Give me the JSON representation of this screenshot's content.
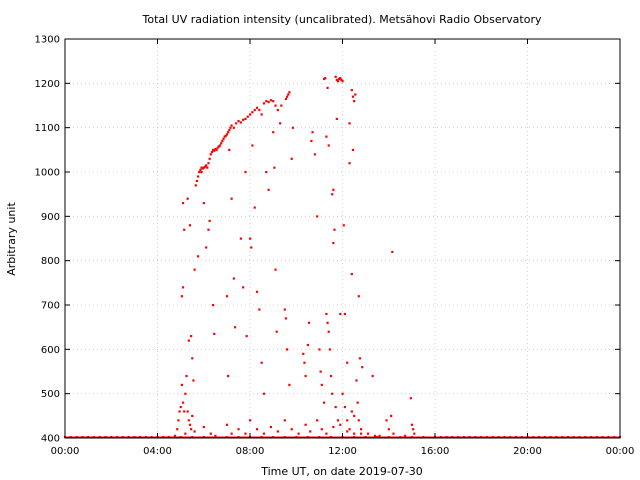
{
  "chart_data": {
    "type": "scatter",
    "title": "Total UV radiation intensity (uncalibrated). Metsähovi Radio Observatory",
    "xlabel": "Time UT, on date 2019-07-30",
    "ylabel": "Arbitrary unit",
    "xlim": [
      0,
      24
    ],
    "ylim": [
      400,
      1300
    ],
    "x_ticks": [
      0,
      4,
      8,
      12,
      16,
      20,
      24
    ],
    "x_tick_labels": [
      "00:00",
      "04:00",
      "08:00",
      "12:00",
      "16:00",
      "20:00",
      "00:00"
    ],
    "y_ticks": [
      400,
      500,
      600,
      700,
      800,
      900,
      1000,
      1100,
      1200,
      1300
    ],
    "grid": true,
    "color": "#ff0000",
    "baseline": {
      "x": [
        0,
        0.25,
        0.5,
        0.75,
        1,
        1.25,
        1.5,
        1.75,
        2,
        2.25,
        2.5,
        2.75,
        3,
        3.25,
        3.5,
        3.75,
        4,
        4.25,
        4.5,
        4.75,
        5,
        5.5,
        6,
        6.5,
        7,
        7.5,
        8,
        8.5,
        9,
        9.5,
        10,
        10.5,
        11,
        11.5,
        12,
        12.5,
        13,
        13.5,
        14,
        14.5,
        15,
        15.5,
        16,
        16.25,
        16.5,
        16.75,
        17,
        17.25,
        17.5,
        17.75,
        18,
        18.25,
        18.5,
        18.75,
        19,
        19.25,
        19.5,
        19.75,
        20,
        20.25,
        20.5,
        20.75,
        21,
        21.25,
        21.5,
        21.75,
        22,
        22.25,
        22.5,
        22.75,
        23,
        23.25,
        23.5,
        23.75,
        24
      ],
      "y": 400
    },
    "series": [
      {
        "points": [
          [
            4.75,
            405
          ],
          [
            4.85,
            420
          ],
          [
            4.9,
            440
          ],
          [
            4.95,
            460
          ],
          [
            5.0,
            470
          ],
          [
            5.05,
            520
          ],
          [
            5.1,
            480
          ],
          [
            5.15,
            460
          ],
          [
            5.2,
            500
          ],
          [
            5.25,
            540
          ],
          [
            5.3,
            460
          ],
          [
            5.35,
            440
          ],
          [
            5.4,
            430
          ],
          [
            5.45,
            420
          ],
          [
            5.5,
            450
          ],
          [
            5.05,
            720
          ],
          [
            5.1,
            740
          ],
          [
            5.15,
            870
          ],
          [
            5.1,
            930
          ],
          [
            5.3,
            940
          ],
          [
            5.4,
            880
          ],
          [
            5.35,
            620
          ],
          [
            5.45,
            630
          ],
          [
            5.5,
            580
          ],
          [
            5.55,
            530
          ],
          [
            5.6,
            780
          ],
          [
            5.65,
            970
          ],
          [
            5.7,
            980
          ],
          [
            5.75,
            990
          ],
          [
            5.8,
            1000
          ],
          [
            5.85,
            1005
          ],
          [
            5.9,
            1010
          ],
          [
            5.95,
            1008
          ],
          [
            6.0,
            1010
          ],
          [
            6.05,
            1012
          ],
          [
            6.1,
            1015
          ],
          [
            6.15,
            1010
          ],
          [
            6.2,
            1020
          ],
          [
            6.25,
            1030
          ],
          [
            6.3,
            1040
          ],
          [
            6.35,
            1045
          ],
          [
            6.4,
            1050
          ],
          [
            6.45,
            1048
          ],
          [
            6.5,
            1052
          ],
          [
            6.55,
            1050
          ],
          [
            6.6,
            1055
          ],
          [
            6.65,
            1058
          ],
          [
            6.7,
            1060
          ],
          [
            6.75,
            1065
          ],
          [
            6.8,
            1070
          ],
          [
            6.85,
            1075
          ],
          [
            6.9,
            1080
          ],
          [
            6.95,
            1082
          ],
          [
            7.0,
            1085
          ],
          [
            7.05,
            1090
          ],
          [
            7.1,
            1095
          ],
          [
            7.15,
            1100
          ],
          [
            7.2,
            1105
          ],
          [
            7.3,
            1100
          ],
          [
            7.4,
            1110
          ],
          [
            7.5,
            1115
          ],
          [
            7.6,
            1112
          ],
          [
            7.7,
            1118
          ],
          [
            7.8,
            1120
          ],
          [
            7.9,
            1125
          ],
          [
            8.0,
            1130
          ],
          [
            8.1,
            1135
          ],
          [
            8.2,
            1140
          ],
          [
            8.3,
            1145
          ],
          [
            8.4,
            1140
          ],
          [
            8.5,
            1130
          ],
          [
            8.6,
            1155
          ],
          [
            8.7,
            1160
          ],
          [
            8.8,
            1158
          ],
          [
            8.9,
            1162
          ],
          [
            9.0,
            1160
          ],
          [
            9.1,
            1150
          ],
          [
            9.2,
            1140
          ],
          [
            9.55,
            1165
          ],
          [
            9.6,
            1170
          ],
          [
            9.65,
            1175
          ],
          [
            9.7,
            1180
          ],
          [
            11.2,
            1210
          ],
          [
            11.25,
            1212
          ],
          [
            11.35,
            1190
          ],
          [
            11.7,
            1215
          ],
          [
            11.75,
            1208
          ],
          [
            11.8,
            1205
          ],
          [
            11.85,
            1210
          ],
          [
            11.9,
            1212
          ],
          [
            11.95,
            1208
          ],
          [
            12.0,
            1205
          ],
          [
            12.4,
            1185
          ],
          [
            12.45,
            1170
          ],
          [
            12.5,
            1160
          ],
          [
            12.55,
            1175
          ],
          [
            12.3,
            1110
          ],
          [
            12.45,
            1050
          ],
          [
            12.3,
            1020
          ],
          [
            11.4,
            1060
          ],
          [
            11.3,
            1080
          ],
          [
            11.6,
            960
          ],
          [
            11.55,
            950
          ],
          [
            11.75,
            1120
          ],
          [
            11.65,
            870
          ],
          [
            11.6,
            840
          ],
          [
            12.05,
            880
          ],
          [
            12.1,
            680
          ],
          [
            12.2,
            570
          ],
          [
            12.4,
            770
          ],
          [
            12.7,
            720
          ],
          [
            12.75,
            580
          ],
          [
            13.3,
            540
          ],
          [
            5.75,
            810
          ],
          [
            5.9,
            1000
          ],
          [
            6.0,
            930
          ],
          [
            6.1,
            830
          ],
          [
            6.2,
            870
          ],
          [
            6.25,
            890
          ],
          [
            6.4,
            700
          ],
          [
            6.45,
            635
          ],
          [
            7.0,
            720
          ],
          [
            7.05,
            540
          ],
          [
            7.1,
            1050
          ],
          [
            7.2,
            940
          ],
          [
            7.3,
            760
          ],
          [
            7.35,
            650
          ],
          [
            7.6,
            850
          ],
          [
            7.7,
            740
          ],
          [
            7.8,
            1000
          ],
          [
            7.85,
            630
          ],
          [
            8.0,
            850
          ],
          [
            8.05,
            830
          ],
          [
            8.1,
            1060
          ],
          [
            8.2,
            920
          ],
          [
            8.3,
            730
          ],
          [
            8.4,
            690
          ],
          [
            8.5,
            570
          ],
          [
            8.6,
            500
          ],
          [
            8.7,
            1000
          ],
          [
            8.8,
            960
          ],
          [
            9.0,
            1090
          ],
          [
            9.05,
            1010
          ],
          [
            9.1,
            780
          ],
          [
            9.15,
            640
          ],
          [
            9.3,
            1110
          ],
          [
            9.35,
            1150
          ],
          [
            9.5,
            690
          ],
          [
            9.55,
            670
          ],
          [
            9.6,
            600
          ],
          [
            9.7,
            520
          ],
          [
            9.8,
            1030
          ],
          [
            9.85,
            1100
          ],
          [
            10.3,
            590
          ],
          [
            10.35,
            570
          ],
          [
            10.4,
            540
          ],
          [
            10.5,
            610
          ],
          [
            10.55,
            660
          ],
          [
            10.65,
            1070
          ],
          [
            10.7,
            1090
          ],
          [
            10.8,
            1040
          ],
          [
            10.9,
            900
          ],
          [
            11.0,
            600
          ],
          [
            11.05,
            550
          ],
          [
            11.1,
            520
          ],
          [
            11.2,
            480
          ],
          [
            11.3,
            680
          ],
          [
            11.35,
            660
          ],
          [
            11.4,
            640
          ],
          [
            11.45,
            600
          ],
          [
            11.5,
            540
          ],
          [
            11.55,
            500
          ],
          [
            11.7,
            470
          ],
          [
            11.8,
            440
          ],
          [
            11.9,
            680
          ],
          [
            12.0,
            500
          ],
          [
            12.1,
            470
          ],
          [
            12.2,
            440
          ],
          [
            12.3,
            420
          ],
          [
            12.4,
            460
          ],
          [
            12.5,
            450
          ],
          [
            12.6,
            530
          ],
          [
            12.65,
            480
          ],
          [
            12.7,
            440
          ],
          [
            12.8,
            410
          ],
          [
            12.85,
            560
          ],
          [
            14.15,
            820
          ],
          [
            13.9,
            440
          ],
          [
            14.0,
            420
          ],
          [
            14.1,
            450
          ],
          [
            14.2,
            410
          ],
          [
            14.95,
            490
          ],
          [
            15.0,
            430
          ],
          [
            15.05,
            420
          ],
          [
            15.1,
            410
          ],
          [
            14.7,
            405
          ],
          [
            13.6,
            405
          ],
          [
            5.2,
            410
          ],
          [
            5.6,
            415
          ],
          [
            6.0,
            425
          ],
          [
            6.3,
            410
          ],
          [
            6.5,
            405
          ],
          [
            7.0,
            430
          ],
          [
            7.2,
            410
          ],
          [
            7.5,
            420
          ],
          [
            7.8,
            410
          ],
          [
            8.0,
            440
          ],
          [
            8.3,
            420
          ],
          [
            8.6,
            410
          ],
          [
            8.9,
            425
          ],
          [
            9.2,
            415
          ],
          [
            9.5,
            440
          ],
          [
            9.8,
            420
          ],
          [
            10.1,
            410
          ],
          [
            10.4,
            430
          ],
          [
            10.6,
            415
          ],
          [
            10.9,
            440
          ],
          [
            11.1,
            420
          ],
          [
            11.3,
            410
          ],
          [
            11.6,
            425
          ],
          [
            11.9,
            430
          ],
          [
            12.2,
            415
          ],
          [
            12.5,
            410
          ],
          [
            12.8,
            420
          ],
          [
            13.1,
            410
          ],
          [
            13.4,
            405
          ]
        ]
      }
    ]
  }
}
